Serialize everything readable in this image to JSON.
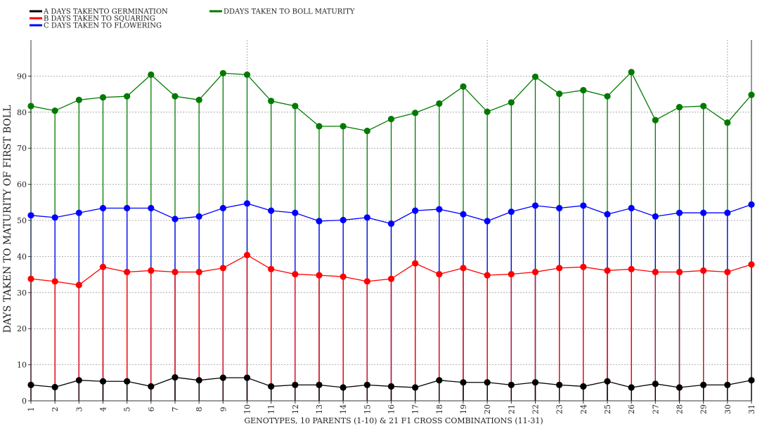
{
  "chart_data": {
    "type": "line",
    "title": "",
    "xlabel": "GENOTYPES, 10 PARENTS (1-10) & 21 F1 CROSS COMBINATIONS (11-31)",
    "ylabel": "DAYS TAKEN TO MATURITY OF FIRST BOLL",
    "x": [
      1,
      2,
      3,
      4,
      5,
      6,
      7,
      8,
      9,
      10,
      11,
      12,
      13,
      14,
      15,
      16,
      17,
      18,
      19,
      20,
      21,
      22,
      23,
      24,
      25,
      26,
      27,
      28,
      29,
      30,
      31
    ],
    "xlim": [
      1,
      31
    ],
    "ylim": [
      0,
      100
    ],
    "y_ticks": [
      0,
      10,
      20,
      30,
      40,
      50,
      60,
      70,
      80,
      90
    ],
    "grid": true,
    "legend_position": "top-left",
    "series": [
      {
        "name": "A  DAYS TAKENTO GERMINATION",
        "color": "#000000",
        "values": [
          4.4,
          3.8,
          5.7,
          5.4,
          5.4,
          4.0,
          6.5,
          5.7,
          6.4,
          6.4,
          4.0,
          4.4,
          4.4,
          3.7,
          4.4,
          4.0,
          3.7,
          5.7,
          5.1,
          5.1,
          4.4,
          5.1,
          4.4,
          4.0,
          5.4,
          3.7,
          4.7,
          3.7,
          4.4,
          4.4,
          5.7
        ]
      },
      {
        "name": "B  DAYS TAKEN TO SQUARING",
        "color": "#ff0000",
        "values": [
          33.8,
          33.1,
          32.1,
          37.1,
          35.7,
          36.1,
          35.7,
          35.7,
          36.8,
          40.4,
          36.5,
          35.1,
          34.8,
          34.4,
          33.1,
          33.8,
          38.1,
          35.1,
          36.8,
          34.8,
          35.1,
          35.7,
          36.8,
          37.1,
          36.1,
          36.5,
          35.7,
          35.7,
          36.1,
          35.7,
          37.8
        ]
      },
      {
        "name": "C  DAYS TAKEN TO FLOWERING",
        "color": "#0000ff",
        "values": [
          51.4,
          50.8,
          52.1,
          53.4,
          53.4,
          53.4,
          50.4,
          51.1,
          53.4,
          54.7,
          52.7,
          52.1,
          49.8,
          50.1,
          50.8,
          49.1,
          52.7,
          53.1,
          51.7,
          49.8,
          52.4,
          54.1,
          53.4,
          54.1,
          51.7,
          53.4,
          51.1,
          52.1,
          52.1,
          52.1,
          54.4
        ]
      },
      {
        "name": "DDAYS TAKEN TO BOLL MATURITY",
        "color": "#007a00",
        "values": [
          81.7,
          80.4,
          83.4,
          84.1,
          84.4,
          90.4,
          84.4,
          83.4,
          90.8,
          90.4,
          83.1,
          81.7,
          76.1,
          76.1,
          74.8,
          78.1,
          79.8,
          82.4,
          87.1,
          80.1,
          82.7,
          89.8,
          85.1,
          86.1,
          84.4,
          91.1,
          77.8,
          81.4,
          81.7,
          77.1,
          84.8
        ]
      }
    ]
  }
}
